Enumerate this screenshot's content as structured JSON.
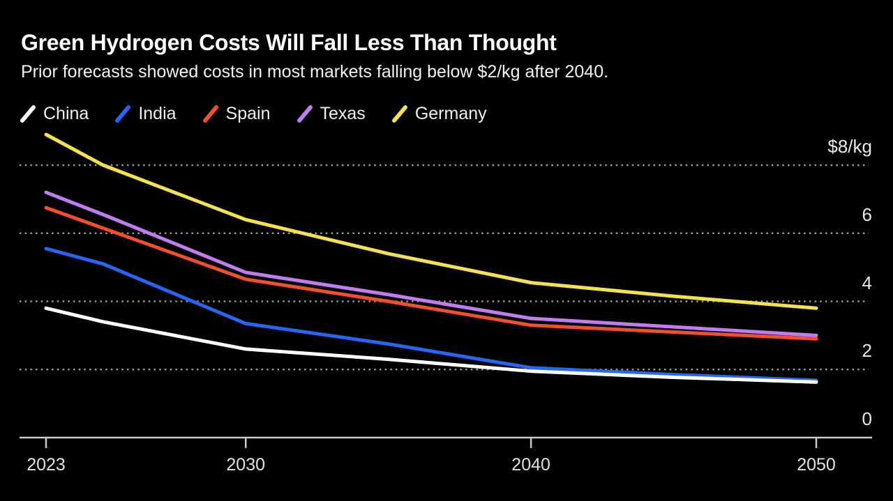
{
  "header": {
    "title": "Green Hydrogen Costs Will Fall Less Than Thought",
    "subtitle": "Prior forecasts showed costs in most markets falling below $2/kg after 2040."
  },
  "legend": [
    {
      "label": "China",
      "color": "#ffffff"
    },
    {
      "label": "India",
      "color": "#2567f2"
    },
    {
      "label": "Spain",
      "color": "#f0502a"
    },
    {
      "label": "Texas",
      "color": "#c07cf0"
    },
    {
      "label": "Germany",
      "color": "#f4e14e"
    }
  ],
  "chart_data": {
    "type": "line",
    "x": [
      2023,
      2025,
      2030,
      2035,
      2040,
      2045,
      2050
    ],
    "series": [
      {
        "name": "China",
        "color": "#ffffff",
        "values": [
          3.8,
          3.4,
          2.6,
          2.3,
          1.95,
          1.77,
          1.63
        ]
      },
      {
        "name": "India",
        "color": "#2567f2",
        "values": [
          5.55,
          5.1,
          3.35,
          2.75,
          2.05,
          1.85,
          1.68
        ]
      },
      {
        "name": "Spain",
        "color": "#f0502a",
        "values": [
          6.75,
          6.15,
          4.65,
          4.0,
          3.3,
          3.1,
          2.9
        ]
      },
      {
        "name": "Texas",
        "color": "#c07cf0",
        "values": [
          7.2,
          6.55,
          4.85,
          4.2,
          3.5,
          3.25,
          3.0
        ]
      },
      {
        "name": "Germany",
        "color": "#f4e14e",
        "values": [
          8.9,
          8.0,
          6.4,
          5.4,
          4.55,
          4.15,
          3.8
        ]
      }
    ],
    "title": "Green Hydrogen Costs Will Fall Less Than Thought",
    "xlabel": "",
    "ylabel": "$/kg",
    "x_axis": {
      "ticks": [
        2023,
        2030,
        2040,
        2050
      ],
      "tick_labels": [
        "2023",
        "2030",
        "2040",
        "2050"
      ],
      "xlim": [
        2023,
        2050
      ]
    },
    "y_axis": {
      "ticks": [
        8,
        6,
        4,
        2,
        0
      ],
      "tick_labels": [
        "$8/kg",
        "6",
        "4",
        "2",
        "0"
      ],
      "ylim": [
        0,
        9.2
      ]
    },
    "grid": "horizontal-dashed",
    "legend_position": "top-left",
    "background": "#000000"
  }
}
